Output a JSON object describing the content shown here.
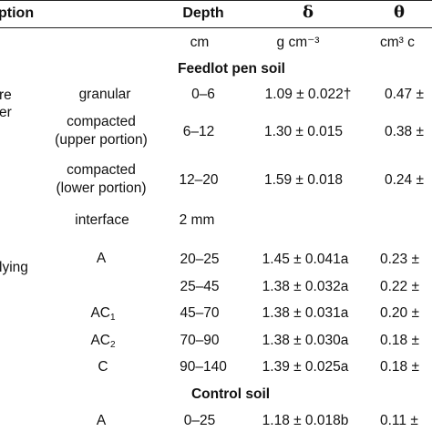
{
  "header": {
    "col_description": "ption",
    "col_depth": "Depth",
    "col_delta": "δ",
    "col_theta": "θ"
  },
  "units": {
    "depth": "cm",
    "delta": "g cm⁻³",
    "theta": "cm³ c"
  },
  "sections": {
    "feedlot": "Feedlot pen soil",
    "control": "Control soil"
  },
  "left_labels": {
    "re": "re",
    "er": "er",
    "lying": "lying"
  },
  "feedlot_rows": [
    {
      "horizon": "granular",
      "depth": "0–6",
      "delta": "1.09 ± 0.022†",
      "theta": "0.47 ±"
    },
    {
      "horizon": "compacted",
      "horizon2": "(upper portion)",
      "depth": "6–12",
      "delta": "1.30 ± 0.015",
      "theta": "0.38 ±"
    },
    {
      "horizon": "compacted",
      "horizon2": "(lower portion)",
      "depth": "12–20",
      "delta": "1.59 ± 0.018",
      "theta": "0.24 ±"
    },
    {
      "horizon": "interface",
      "depth": "2 mm",
      "delta": "",
      "theta": ""
    },
    {
      "horizon": "A",
      "depth": "20–25",
      "delta": "1.45 ± 0.041a",
      "theta": "0.23 ±"
    },
    {
      "horizon": "",
      "depth": "25–45",
      "delta": "1.38 ± 0.032a",
      "theta": "0.22 ±"
    },
    {
      "horizon": "AC",
      "sub": "1",
      "depth": "45–70",
      "delta": "1.38 ± 0.031a",
      "theta": "0.20 ±"
    },
    {
      "horizon": "AC",
      "sub": "2",
      "depth": "70–90",
      "delta": "1.38 ± 0.030a",
      "theta": "0.18 ±"
    },
    {
      "horizon": "C",
      "depth": "90–140",
      "delta": "1.39 ± 0.025a",
      "theta": "0.18 ±"
    }
  ],
  "control_rows": [
    {
      "horizon": "A",
      "depth": "0–25",
      "delta": "1.18 ± 0.018b",
      "theta": "0.11 ±"
    }
  ]
}
